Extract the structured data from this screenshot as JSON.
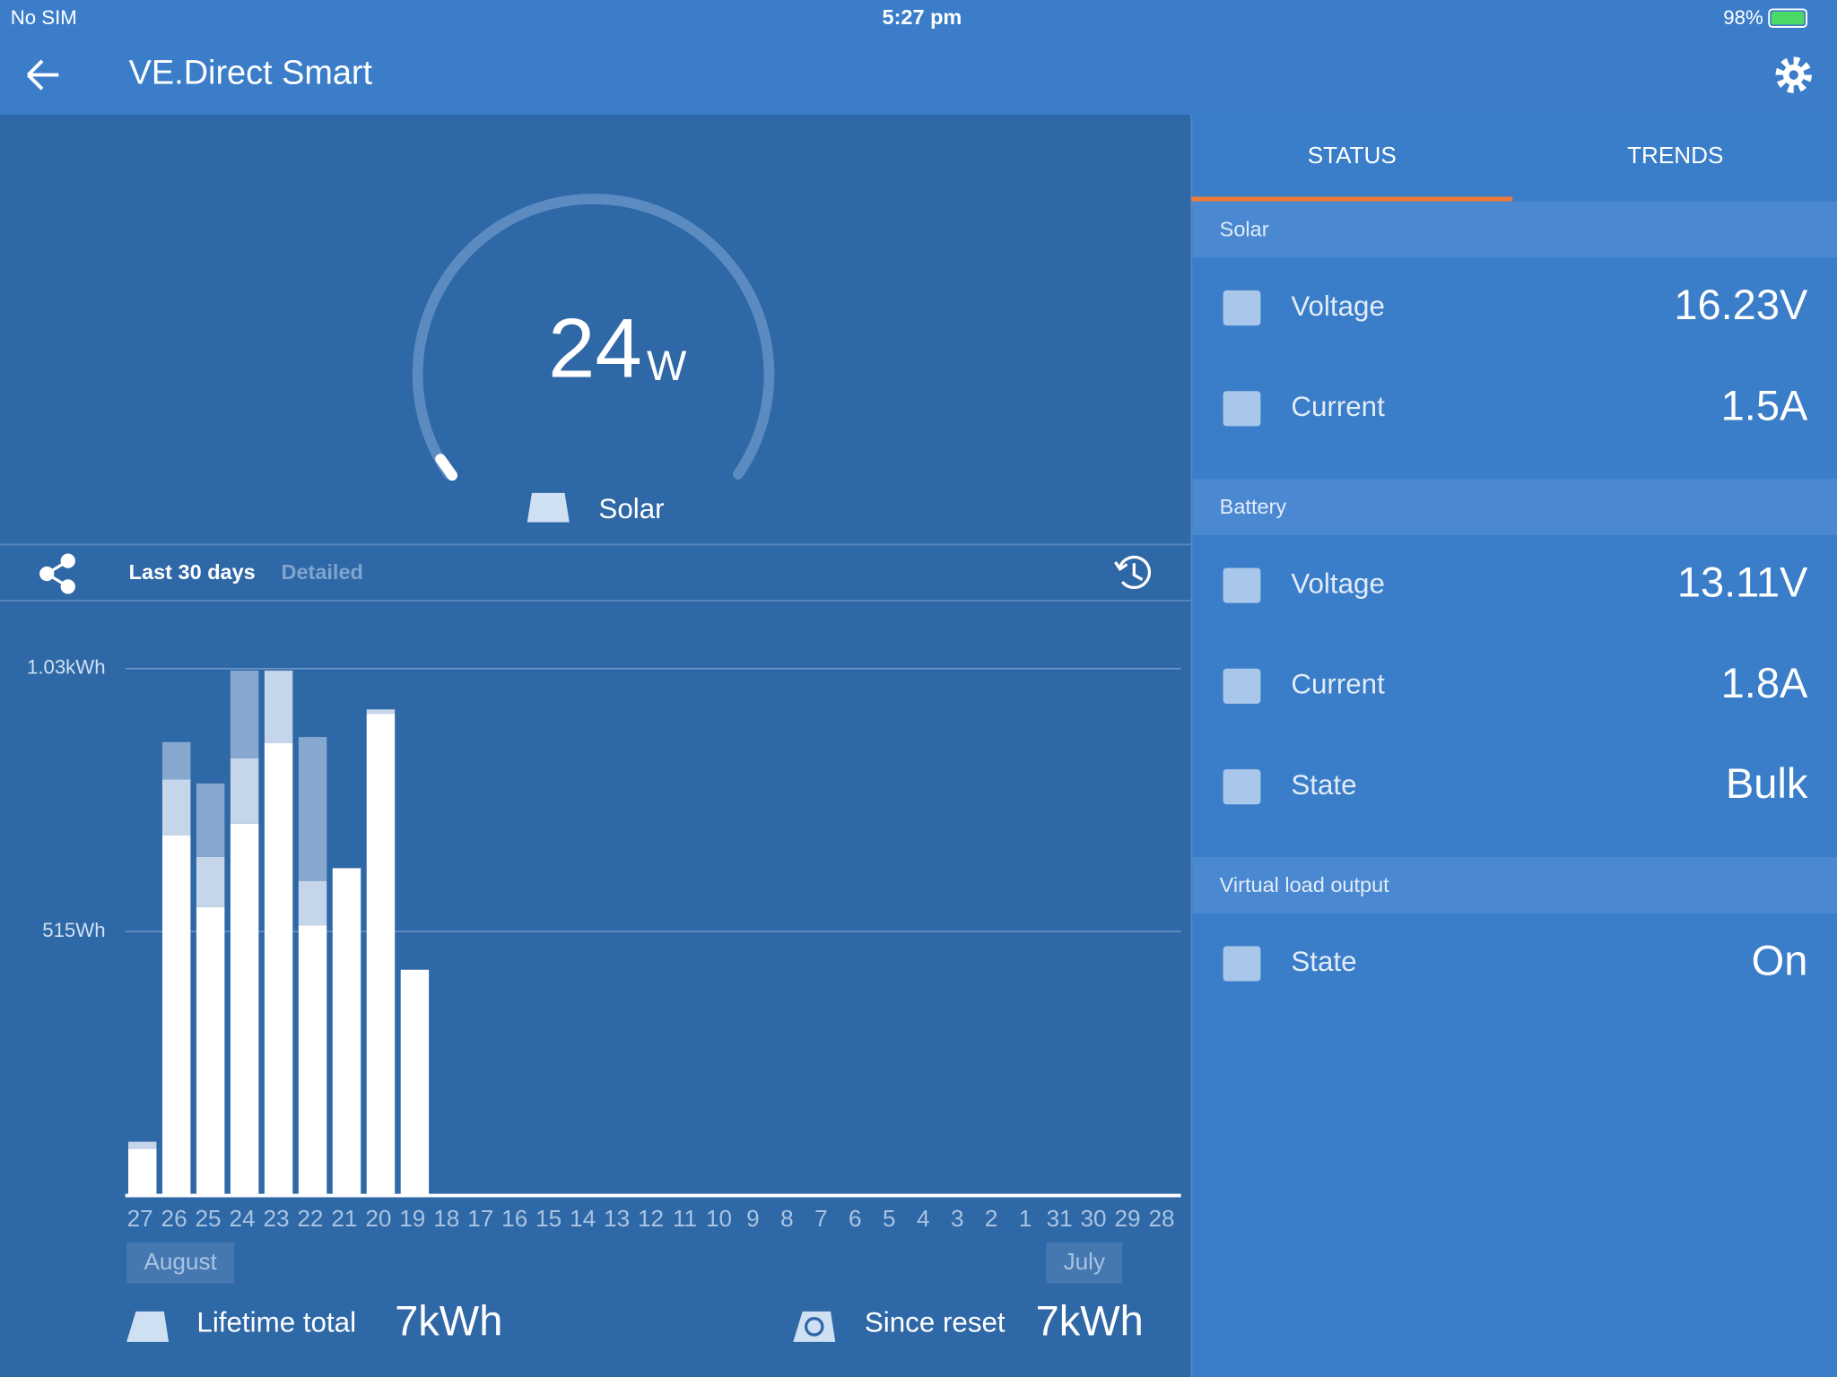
{
  "status_bar": {
    "carrier": "No SIM",
    "time": "5:27 pm",
    "battery": "98%"
  },
  "header": {
    "title": "VE.Direct Smart"
  },
  "gauge": {
    "value": 24,
    "unit": "W",
    "label": "Solar"
  },
  "history_tabs": [
    "Last 30 days",
    "Detailed"
  ],
  "chart_data": {
    "type": "bar",
    "stacked": true,
    "categories": [
      "27",
      "26",
      "25",
      "24",
      "23",
      "22",
      "21",
      "20",
      "19",
      "18",
      "17",
      "16",
      "15",
      "14",
      "13",
      "12",
      "11",
      "10",
      "9",
      "8",
      "7",
      "6",
      "5",
      "4",
      "3",
      "2",
      "1",
      "31",
      "30",
      "29",
      "28"
    ],
    "series": [
      {
        "color": "#ffffff",
        "values": [
          89,
          703,
          563,
          726,
          884,
          527,
          639,
          941,
          440,
          0,
          0,
          0,
          0,
          0,
          0,
          0,
          0,
          0,
          0,
          0,
          0,
          0,
          0,
          0,
          0,
          0,
          0,
          0,
          0,
          0,
          0
        ]
      },
      {
        "color": "#c6d6ea",
        "values": [
          14,
          110,
          98,
          128,
          142,
          87,
          0,
          9,
          0,
          0,
          0,
          0,
          0,
          0,
          0,
          0,
          0,
          0,
          0,
          0,
          0,
          0,
          0,
          0,
          0,
          0,
          0,
          0,
          0,
          0,
          0
        ]
      },
      {
        "color": "#86a8cf",
        "values": [
          0,
          73,
          144,
          172,
          0,
          282,
          0,
          0,
          0,
          0,
          0,
          0,
          0,
          0,
          0,
          0,
          0,
          0,
          0,
          0,
          0,
          0,
          0,
          0,
          0,
          0,
          0,
          0,
          0,
          0,
          0
        ]
      }
    ],
    "ylim": [
      0,
      1030
    ],
    "yticks": [
      {
        "value": 515,
        "label": "515Wh"
      },
      {
        "value": 1030,
        "label": "1.03kWh"
      }
    ],
    "grid": true,
    "month_labels": [
      "August",
      "July"
    ]
  },
  "totals": [
    {
      "label": "Lifetime total",
      "value": "7kWh"
    },
    {
      "label": "Since reset",
      "value": "7kWh"
    }
  ],
  "tabs": [
    "STATUS",
    "TRENDS"
  ],
  "sections": [
    {
      "title": "Solar",
      "rows": [
        {
          "label": "Voltage",
          "value": "16.23V"
        },
        {
          "label": "Current",
          "value": "1.5A"
        }
      ]
    },
    {
      "title": "Battery",
      "rows": [
        {
          "label": "Voltage",
          "value": "13.11V"
        },
        {
          "label": "Current",
          "value": "1.8A"
        },
        {
          "label": "State",
          "value": "Bulk"
        }
      ]
    },
    {
      "title": "Virtual load output",
      "rows": [
        {
          "label": "State",
          "value": "On"
        }
      ]
    }
  ]
}
